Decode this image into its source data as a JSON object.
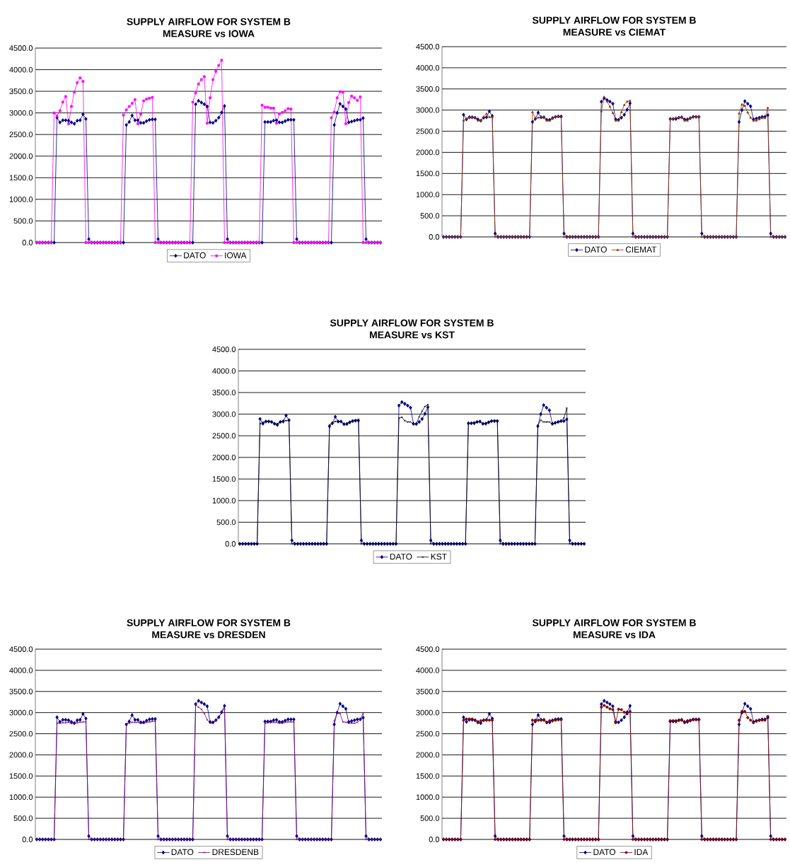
{
  "chart_data": [
    {
      "type": "line",
      "title": "SUPPLY AIRFLOW FOR SYSTEM B",
      "subtitle": "MEASURE vs IOWA",
      "categories": [
        null,
        null,
        null,
        null,
        null,
        null,
        null,
        null,
        null,
        null,
        null,
        null,
        null,
        null,
        null,
        null,
        null,
        null,
        null,
        null,
        null,
        null,
        null,
        null,
        null,
        null,
        null,
        null,
        null,
        null,
        null,
        null,
        null,
        null,
        null,
        null,
        null,
        null,
        null,
        null,
        null,
        null,
        null,
        null,
        null,
        null,
        null,
        null,
        null,
        null,
        null,
        null,
        null,
        null,
        null,
        null,
        null,
        null,
        null,
        null,
        null,
        null,
        null,
        null,
        null,
        null,
        null,
        null,
        null,
        null,
        null,
        null,
        null,
        null,
        null,
        null,
        null,
        null,
        null,
        null,
        null,
        null,
        null,
        null,
        null,
        null,
        null,
        null,
        null,
        null,
        null,
        null,
        null,
        null,
        null,
        null,
        null,
        null,
        null,
        null,
        null,
        null,
        null,
        null,
        null,
        null,
        null,
        null,
        null,
        null,
        null,
        null,
        null,
        null,
        null,
        null,
        null,
        null,
        null,
        null
      ],
      "ylim": [
        0,
        4500
      ],
      "yticks": [
        {
          "value": 0,
          "label": "0.0"
        },
        {
          "value": 500,
          "label": "500.0"
        },
        {
          "value": 1000,
          "label": "1000.0"
        },
        {
          "value": 1500,
          "label": "1500.0"
        },
        {
          "value": 2000,
          "label": "2000.0"
        },
        {
          "value": 2500,
          "label": "2500.0"
        },
        {
          "value": 3000,
          "label": "3000.0"
        },
        {
          "value": 3500,
          "label": "3500.0"
        },
        {
          "value": 4000,
          "label": "4000.0"
        },
        {
          "value": 4500,
          "label": "4500.0"
        }
      ],
      "grid": "y",
      "legend": "bottom",
      "tick_labels": "y",
      "series": [
        {
          "name": "DATO",
          "color": "#000080",
          "marker": "diamond",
          "values": [
            0,
            0,
            0,
            0,
            0,
            0,
            0,
            2890,
            2780,
            2830,
            2830,
            2820,
            2780,
            2750,
            2820,
            2830,
            2970,
            2860,
            80,
            0,
            0,
            0,
            0,
            0,
            0,
            0,
            0,
            0,
            0,
            0,
            0,
            2720,
            2790,
            2940,
            2830,
            2830,
            2770,
            2770,
            2810,
            2840,
            2850,
            2850,
            80,
            0,
            0,
            0,
            0,
            0,
            0,
            0,
            0,
            0,
            0,
            0,
            0,
            3200,
            3280,
            3240,
            3200,
            3150,
            2780,
            2770,
            2820,
            2890,
            3010,
            3160,
            80,
            0,
            0,
            0,
            0,
            0,
            0,
            0,
            0,
            0,
            0,
            0,
            0,
            2790,
            2790,
            2790,
            2820,
            2830,
            2780,
            2780,
            2810,
            2840,
            2840,
            2840,
            80,
            0,
            0,
            0,
            0,
            0,
            0,
            0,
            0,
            0,
            0,
            0,
            0,
            2720,
            3000,
            3210,
            3150,
            3090,
            2780,
            2800,
            2820,
            2840,
            2840,
            2880,
            80,
            0,
            0,
            0,
            0,
            0
          ]
        },
        {
          "name": "IOWA",
          "color": "#ff00ff",
          "marker": "square",
          "values": [
            0,
            0,
            0,
            0,
            0,
            0,
            3000,
            2930,
            3050,
            3250,
            3380,
            2750,
            3150,
            3480,
            3700,
            3810,
            3730,
            0,
            0,
            0,
            0,
            0,
            0,
            0,
            0,
            0,
            0,
            0,
            0,
            0,
            2950,
            3070,
            3150,
            3220,
            3310,
            2750,
            2970,
            3280,
            3320,
            3340,
            3360,
            0,
            0,
            0,
            0,
            0,
            0,
            0,
            0,
            0,
            0,
            0,
            0,
            0,
            3250,
            3460,
            3670,
            3770,
            3840,
            2760,
            3350,
            3770,
            3960,
            4100,
            4220,
            0,
            0,
            0,
            0,
            0,
            0,
            0,
            0,
            0,
            0,
            0,
            0,
            0,
            3180,
            3130,
            3130,
            3110,
            3110,
            2760,
            2980,
            3010,
            3050,
            3100,
            3090,
            0,
            0,
            0,
            0,
            0,
            0,
            0,
            0,
            0,
            0,
            0,
            0,
            0,
            2890,
            3020,
            3350,
            3490,
            3480,
            2750,
            3240,
            3390,
            3350,
            3290,
            3370,
            0,
            0,
            0,
            0,
            0,
            0,
            0
          ]
        }
      ]
    },
    {
      "type": "line",
      "title": "SUPPLY AIRFLOW FOR SYSTEM B",
      "subtitle": "MEASURE vs CIEMAT",
      "categories": [
        null,
        null,
        null,
        null,
        null,
        null,
        null,
        null,
        null,
        null,
        null,
        null,
        null,
        null,
        null,
        null,
        null,
        null,
        null,
        null,
        null,
        null,
        null,
        null,
        null,
        null,
        null,
        null,
        null,
        null,
        null,
        null,
        null,
        null,
        null,
        null,
        null,
        null,
        null,
        null,
        null,
        null,
        null,
        null,
        null,
        null,
        null,
        null,
        null,
        null,
        null,
        null,
        null,
        null,
        null,
        null,
        null,
        null,
        null,
        null,
        null,
        null,
        null,
        null,
        null,
        null,
        null,
        null,
        null,
        null,
        null,
        null,
        null,
        null,
        null,
        null,
        null,
        null,
        null,
        null,
        null,
        null,
        null,
        null,
        null,
        null,
        null,
        null,
        null,
        null,
        null,
        null,
        null,
        null,
        null,
        null,
        null,
        null,
        null,
        null,
        null,
        null,
        null,
        null,
        null,
        null,
        null,
        null,
        null,
        null,
        null,
        null,
        null,
        null,
        null,
        null,
        null,
        null,
        null,
        null
      ],
      "ylim": [
        0,
        4500
      ],
      "yticks": [
        {
          "value": 0,
          "label": "0.0"
        },
        {
          "value": 500,
          "label": "500.0"
        },
        {
          "value": 1000,
          "label": "1000.0"
        },
        {
          "value": 1500,
          "label": "1500.0"
        },
        {
          "value": 2000,
          "label": "2000.0"
        },
        {
          "value": 2500,
          "label": "2500.0"
        },
        {
          "value": 3000,
          "label": "3000.0"
        },
        {
          "value": 3500,
          "label": "3500.0"
        },
        {
          "value": 4000,
          "label": "4000.0"
        },
        {
          "value": 4500,
          "label": "4500.0"
        }
      ],
      "grid": "y",
      "legend": "bottom",
      "tick_labels": "y",
      "series": [
        {
          "name": "DATO",
          "color": "#000080",
          "marker": "diamond",
          "values": [
            0,
            0,
            0,
            0,
            0,
            0,
            0,
            2890,
            2780,
            2830,
            2830,
            2820,
            2780,
            2750,
            2820,
            2830,
            2970,
            2860,
            80,
            0,
            0,
            0,
            0,
            0,
            0,
            0,
            0,
            0,
            0,
            0,
            0,
            2720,
            2790,
            2940,
            2830,
            2830,
            2770,
            2770,
            2810,
            2840,
            2850,
            2850,
            80,
            0,
            0,
            0,
            0,
            0,
            0,
            0,
            0,
            0,
            0,
            0,
            0,
            3200,
            3280,
            3240,
            3200,
            3150,
            2780,
            2770,
            2820,
            2890,
            3010,
            3160,
            80,
            0,
            0,
            0,
            0,
            0,
            0,
            0,
            0,
            0,
            0,
            0,
            0,
            2790,
            2790,
            2790,
            2820,
            2830,
            2780,
            2780,
            2810,
            2840,
            2840,
            2840,
            80,
            0,
            0,
            0,
            0,
            0,
            0,
            0,
            0,
            0,
            0,
            0,
            0,
            2720,
            3000,
            3210,
            3150,
            3090,
            2780,
            2800,
            2820,
            2840,
            2840,
            2880,
            80,
            0,
            0,
            0,
            0,
            0
          ]
        },
        {
          "name": "CIEMAT",
          "color": "#993300",
          "marker": "triangle",
          "values": [
            0,
            0,
            0,
            0,
            0,
            0,
            0,
            2750,
            2800,
            2820,
            2820,
            2820,
            2750,
            2750,
            2840,
            2910,
            2830,
            2830,
            0,
            0,
            0,
            0,
            0,
            0,
            0,
            0,
            0,
            0,
            0,
            0,
            0,
            2950,
            2810,
            2820,
            2820,
            2820,
            2750,
            2750,
            2800,
            2840,
            2840,
            2830,
            0,
            0,
            0,
            0,
            0,
            0,
            0,
            0,
            0,
            0,
            0,
            0,
            0,
            2970,
            3310,
            3200,
            3080,
            2930,
            2750,
            2750,
            2950,
            3120,
            3200,
            3220,
            0,
            0,
            0,
            0,
            0,
            0,
            0,
            0,
            0,
            0,
            0,
            0,
            0,
            2780,
            2800,
            2820,
            2820,
            2830,
            2750,
            2750,
            2810,
            2840,
            2840,
            2840,
            0,
            0,
            0,
            0,
            0,
            0,
            0,
            0,
            0,
            0,
            0,
            0,
            0,
            2920,
            3130,
            3100,
            2940,
            2820,
            2750,
            2750,
            2780,
            2810,
            2810,
            3050,
            0,
            0,
            0,
            0,
            0,
            0
          ]
        }
      ]
    },
    {
      "type": "line",
      "title": "SUPPLY AIRFLOW FOR SYSTEM B",
      "subtitle": "MEASURE vs KST",
      "categories": [
        null,
        null,
        null,
        null,
        null,
        null,
        null,
        null,
        null,
        null,
        null,
        null,
        null,
        null,
        null,
        null,
        null,
        null,
        null,
        null,
        null,
        null,
        null,
        null,
        null,
        null,
        null,
        null,
        null,
        null,
        null,
        null,
        null,
        null,
        null,
        null,
        null,
        null,
        null,
        null,
        null,
        null,
        null,
        null,
        null,
        null,
        null,
        null,
        null,
        null,
        null,
        null,
        null,
        null,
        null,
        null,
        null,
        null,
        null,
        null,
        null,
        null,
        null,
        null,
        null,
        null,
        null,
        null,
        null,
        null,
        null,
        null,
        null,
        null,
        null,
        null,
        null,
        null,
        null,
        null,
        null,
        null,
        null,
        null,
        null,
        null,
        null,
        null,
        null,
        null,
        null,
        null,
        null,
        null,
        null,
        null,
        null,
        null,
        null,
        null,
        null,
        null,
        null,
        null,
        null,
        null,
        null,
        null,
        null,
        null,
        null,
        null,
        null,
        null,
        null,
        null,
        null,
        null,
        null,
        null
      ],
      "ylim": [
        0,
        4500
      ],
      "yticks": [
        {
          "value": 0,
          "label": "0.0"
        },
        {
          "value": 500,
          "label": "500.0"
        },
        {
          "value": 1000,
          "label": "1000.0"
        },
        {
          "value": 1500,
          "label": "1500.0"
        },
        {
          "value": 2000,
          "label": "2000.0"
        },
        {
          "value": 2500,
          "label": "2500.0"
        },
        {
          "value": 3000,
          "label": "3000.0"
        },
        {
          "value": 3500,
          "label": "3500.0"
        },
        {
          "value": 4000,
          "label": "4000.0"
        },
        {
          "value": 4500,
          "label": "4500.0"
        }
      ],
      "grid": "y",
      "legend": "bottom",
      "tick_labels": "y",
      "series": [
        {
          "name": "DATO",
          "color": "#000080",
          "marker": "diamond",
          "values": [
            0,
            0,
            0,
            0,
            0,
            0,
            0,
            2890,
            2780,
            2830,
            2830,
            2820,
            2780,
            2750,
            2820,
            2830,
            2970,
            2860,
            80,
            0,
            0,
            0,
            0,
            0,
            0,
            0,
            0,
            0,
            0,
            0,
            0,
            2720,
            2790,
            2940,
            2830,
            2830,
            2770,
            2770,
            2810,
            2840,
            2850,
            2850,
            80,
            0,
            0,
            0,
            0,
            0,
            0,
            0,
            0,
            0,
            0,
            0,
            0,
            3200,
            3280,
            3240,
            3200,
            3150,
            2780,
            2770,
            2820,
            2890,
            3010,
            3160,
            80,
            0,
            0,
            0,
            0,
            0,
            0,
            0,
            0,
            0,
            0,
            0,
            0,
            2790,
            2790,
            2790,
            2820,
            2830,
            2780,
            2780,
            2810,
            2840,
            2840,
            2840,
            80,
            0,
            0,
            0,
            0,
            0,
            0,
            0,
            0,
            0,
            0,
            0,
            0,
            2720,
            3000,
            3210,
            3150,
            3090,
            2780,
            2800,
            2820,
            2840,
            2840,
            2880,
            80,
            0,
            0,
            0,
            0,
            0
          ]
        },
        {
          "name": "KST",
          "color": "#000000",
          "marker": "cross",
          "values": [
            0,
            0,
            0,
            0,
            0,
            0,
            0,
            2780,
            2810,
            2830,
            2840,
            2820,
            2770,
            2780,
            2820,
            2850,
            2850,
            2850,
            0,
            0,
            0,
            0,
            0,
            0,
            0,
            0,
            0,
            0,
            0,
            0,
            0,
            2750,
            2810,
            2830,
            2830,
            2830,
            2760,
            2790,
            2820,
            2850,
            2860,
            2880,
            0,
            0,
            0,
            0,
            0,
            0,
            0,
            0,
            0,
            0,
            0,
            0,
            0,
            2910,
            2930,
            2850,
            2820,
            2820,
            2760,
            2780,
            2940,
            3070,
            3180,
            3220,
            0,
            0,
            0,
            0,
            0,
            0,
            0,
            0,
            0,
            0,
            0,
            0,
            0,
            2780,
            2790,
            2810,
            2820,
            2830,
            2770,
            2790,
            2820,
            2840,
            2850,
            2850,
            0,
            0,
            0,
            0,
            0,
            0,
            0,
            0,
            0,
            0,
            0,
            0,
            0,
            2740,
            2860,
            2820,
            2820,
            2820,
            2760,
            2790,
            2820,
            2830,
            2910,
            3140,
            0,
            0,
            0,
            0,
            0,
            0
          ]
        }
      ]
    },
    {
      "type": "line",
      "title": "SUPPLY AIRFLOW FOR SYSTEM B",
      "subtitle": "MEASURE vs DRESDEN",
      "categories": [
        null,
        null,
        null,
        null,
        null,
        null,
        null,
        null,
        null,
        null,
        null,
        null,
        null,
        null,
        null,
        null,
        null,
        null,
        null,
        null,
        null,
        null,
        null,
        null,
        null,
        null,
        null,
        null,
        null,
        null,
        null,
        null,
        null,
        null,
        null,
        null,
        null,
        null,
        null,
        null,
        null,
        null,
        null,
        null,
        null,
        null,
        null,
        null,
        null,
        null,
        null,
        null,
        null,
        null,
        null,
        null,
        null,
        null,
        null,
        null,
        null,
        null,
        null,
        null,
        null,
        null,
        null,
        null,
        null,
        null,
        null,
        null,
        null,
        null,
        null,
        null,
        null,
        null,
        null,
        null,
        null,
        null,
        null,
        null,
        null,
        null,
        null,
        null,
        null,
        null,
        null,
        null,
        null,
        null,
        null,
        null,
        null,
        null,
        null,
        null,
        null,
        null,
        null,
        null,
        null,
        null,
        null,
        null,
        null,
        null,
        null,
        null,
        null,
        null,
        null,
        null,
        null,
        null,
        null,
        null
      ],
      "ylim": [
        0,
        4500
      ],
      "yticks": [
        {
          "value": 0,
          "label": "0.0"
        },
        {
          "value": 500,
          "label": "500.0"
        },
        {
          "value": 1000,
          "label": "1000.0"
        },
        {
          "value": 1500,
          "label": "1500.0"
        },
        {
          "value": 2000,
          "label": "2000.0"
        },
        {
          "value": 2500,
          "label": "2500.0"
        },
        {
          "value": 3000,
          "label": "3000.0"
        },
        {
          "value": 3500,
          "label": "3500.0"
        },
        {
          "value": 4000,
          "label": "4000.0"
        },
        {
          "value": 4500,
          "label": "4500.0"
        }
      ],
      "grid": "y",
      "legend": "bottom",
      "tick_labels": "y",
      "series": [
        {
          "name": "DATO",
          "color": "#000080",
          "marker": "diamond",
          "values": [
            0,
            0,
            0,
            0,
            0,
            0,
            0,
            2890,
            2780,
            2830,
            2830,
            2820,
            2780,
            2750,
            2820,
            2830,
            2970,
            2860,
            80,
            0,
            0,
            0,
            0,
            0,
            0,
            0,
            0,
            0,
            0,
            0,
            0,
            2720,
            2790,
            2940,
            2830,
            2830,
            2770,
            2770,
            2810,
            2840,
            2850,
            2850,
            80,
            0,
            0,
            0,
            0,
            0,
            0,
            0,
            0,
            0,
            0,
            0,
            0,
            3200,
            3280,
            3240,
            3200,
            3150,
            2780,
            2770,
            2820,
            2890,
            3010,
            3160,
            80,
            0,
            0,
            0,
            0,
            0,
            0,
            0,
            0,
            0,
            0,
            0,
            0,
            2790,
            2790,
            2790,
            2820,
            2830,
            2780,
            2780,
            2810,
            2840,
            2840,
            2840,
            80,
            0,
            0,
            0,
            0,
            0,
            0,
            0,
            0,
            0,
            0,
            0,
            0,
            2720,
            3000,
            3210,
            3150,
            3090,
            2780,
            2800,
            2820,
            2840,
            2840,
            2880,
            80,
            0,
            0,
            0,
            0,
            0
          ]
        },
        {
          "name": "DRESDENB",
          "color": "#800080",
          "marker": "cross",
          "values": [
            0,
            0,
            0,
            0,
            0,
            0,
            0,
            2750,
            2750,
            2760,
            2760,
            2770,
            2740,
            2750,
            2760,
            2770,
            2780,
            2780,
            0,
            0,
            0,
            0,
            0,
            0,
            0,
            0,
            0,
            0,
            0,
            0,
            0,
            2730,
            2750,
            2770,
            2770,
            2770,
            2750,
            2750,
            2770,
            2780,
            2790,
            2800,
            0,
            0,
            0,
            0,
            0,
            0,
            0,
            0,
            0,
            0,
            0,
            0,
            0,
            3180,
            3130,
            3080,
            2980,
            2830,
            2750,
            2750,
            2810,
            2880,
            3010,
            3090,
            0,
            0,
            0,
            0,
            0,
            0,
            0,
            0,
            0,
            0,
            0,
            0,
            0,
            2750,
            2760,
            2770,
            2770,
            2770,
            2750,
            2750,
            2770,
            2780,
            2780,
            2780,
            0,
            0,
            0,
            0,
            0,
            0,
            0,
            0,
            0,
            0,
            0,
            0,
            0,
            2810,
            2990,
            2980,
            2780,
            2770,
            2750,
            2750,
            2750,
            2770,
            2830,
            2990,
            0,
            0,
            0,
            0,
            0,
            0
          ]
        }
      ]
    },
    {
      "type": "line",
      "title": "SUPPLY AIRFLOW FOR SYSTEM B",
      "subtitle": "MEASURE vs IDA",
      "categories": [
        null,
        null,
        null,
        null,
        null,
        null,
        null,
        null,
        null,
        null,
        null,
        null,
        null,
        null,
        null,
        null,
        null,
        null,
        null,
        null,
        null,
        null,
        null,
        null,
        null,
        null,
        null,
        null,
        null,
        null,
        null,
        null,
        null,
        null,
        null,
        null,
        null,
        null,
        null,
        null,
        null,
        null,
        null,
        null,
        null,
        null,
        null,
        null,
        null,
        null,
        null,
        null,
        null,
        null,
        null,
        null,
        null,
        null,
        null,
        null,
        null,
        null,
        null,
        null,
        null,
        null,
        null,
        null,
        null,
        null,
        null,
        null,
        null,
        null,
        null,
        null,
        null,
        null,
        null,
        null,
        null,
        null,
        null,
        null,
        null,
        null,
        null,
        null,
        null,
        null,
        null,
        null,
        null,
        null,
        null,
        null,
        null,
        null,
        null,
        null,
        null,
        null,
        null,
        null,
        null,
        null,
        null,
        null,
        null,
        null,
        null,
        null,
        null,
        null,
        null,
        null,
        null,
        null,
        null,
        null
      ],
      "ylim": [
        0,
        4500
      ],
      "yticks": [
        {
          "value": 0,
          "label": "0.0"
        },
        {
          "value": 500,
          "label": "500.0"
        },
        {
          "value": 1000,
          "label": "1000.0"
        },
        {
          "value": 1500,
          "label": "1500.0"
        },
        {
          "value": 2000,
          "label": "2000.0"
        },
        {
          "value": 2500,
          "label": "2500.0"
        },
        {
          "value": 3000,
          "label": "3000.0"
        },
        {
          "value": 3500,
          "label": "3500.0"
        },
        {
          "value": 4000,
          "label": "4000.0"
        },
        {
          "value": 4500,
          "label": "4500.0"
        }
      ],
      "grid": "y",
      "legend": "bottom",
      "tick_labels": "y",
      "series": [
        {
          "name": "DATO",
          "color": "#000080",
          "marker": "diamond",
          "values": [
            0,
            0,
            0,
            0,
            0,
            0,
            0,
            2890,
            2780,
            2830,
            2830,
            2820,
            2780,
            2750,
            2820,
            2830,
            2970,
            2860,
            80,
            0,
            0,
            0,
            0,
            0,
            0,
            0,
            0,
            0,
            0,
            0,
            0,
            2720,
            2790,
            2940,
            2830,
            2830,
            2770,
            2770,
            2810,
            2840,
            2850,
            2850,
            80,
            0,
            0,
            0,
            0,
            0,
            0,
            0,
            0,
            0,
            0,
            0,
            0,
            3200,
            3280,
            3240,
            3200,
            3150,
            2780,
            2770,
            2820,
            2890,
            3010,
            3160,
            80,
            0,
            0,
            0,
            0,
            0,
            0,
            0,
            0,
            0,
            0,
            0,
            0,
            2790,
            2790,
            2790,
            2820,
            2830,
            2780,
            2780,
            2810,
            2840,
            2840,
            2840,
            80,
            0,
            0,
            0,
            0,
            0,
            0,
            0,
            0,
            0,
            0,
            0,
            0,
            2720,
            3000,
            3210,
            3150,
            3090,
            2780,
            2800,
            2820,
            2840,
            2840,
            2880,
            80,
            0,
            0,
            0,
            0,
            0
          ]
        },
        {
          "name": "IDA",
          "color": "#800000",
          "marker": "circle",
          "values": [
            0,
            0,
            0,
            0,
            0,
            0,
            0,
            2820,
            2850,
            2850,
            2850,
            2820,
            2760,
            2810,
            2820,
            2820,
            2820,
            2820,
            0,
            0,
            0,
            0,
            0,
            0,
            0,
            0,
            0,
            0,
            0,
            0,
            0,
            2820,
            2820,
            2820,
            2820,
            2820,
            2760,
            2810,
            2820,
            2820,
            2830,
            2830,
            0,
            0,
            0,
            0,
            0,
            0,
            0,
            0,
            0,
            0,
            0,
            0,
            0,
            3130,
            3170,
            3130,
            3090,
            3070,
            2760,
            3080,
            3070,
            3010,
            2970,
            3030,
            0,
            0,
            0,
            0,
            0,
            0,
            0,
            0,
            0,
            0,
            0,
            0,
            0,
            2810,
            2810,
            2810,
            2820,
            2820,
            2760,
            2810,
            2820,
            2830,
            2830,
            2830,
            0,
            0,
            0,
            0,
            0,
            0,
            0,
            0,
            0,
            0,
            0,
            0,
            0,
            2820,
            3030,
            3030,
            2880,
            2820,
            2760,
            2810,
            2820,
            2820,
            2820,
            2910,
            0,
            0,
            0,
            0,
            0,
            0
          ]
        }
      ]
    }
  ]
}
